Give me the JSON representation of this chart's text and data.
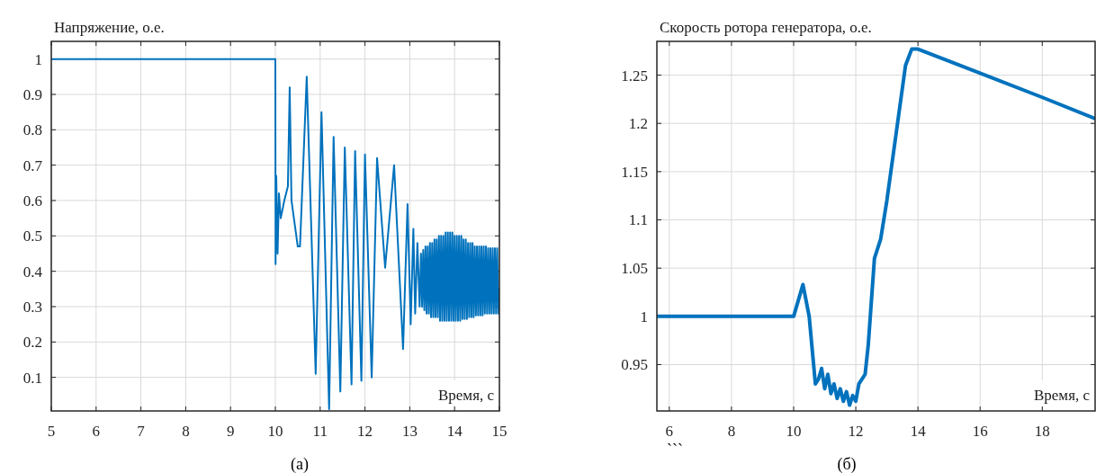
{
  "chart_data": [
    {
      "type": "line",
      "ylabel": "Напряжение, о.е.",
      "xlabel": "Время, с",
      "xlim": [
        5,
        15
      ],
      "ylim": [
        0.005,
        1.05
      ],
      "xticks": [
        5,
        6,
        7,
        8,
        9,
        10,
        11,
        12,
        13,
        14,
        15
      ],
      "yticks": [
        0.1,
        0.2,
        0.3,
        0.4,
        0.5,
        0.6,
        0.7,
        0.8,
        0.9,
        1
      ],
      "grid": true,
      "line_style": "solid",
      "annotations": [
        "(а)"
      ],
      "series": [
        {
          "color": "#0072bd",
          "x": [
            5,
            10,
            10.005,
            10.02,
            10.05,
            10.08,
            10.12,
            10.2,
            10.28,
            10.32,
            10.36,
            10.5,
            10.55,
            10.7,
            10.9,
            11.03,
            11.2,
            11.3,
            11.45,
            11.55,
            11.7,
            11.78,
            11.92,
            12.0,
            12.15,
            12.27,
            12.45,
            12.65,
            12.85,
            12.95,
            13.02,
            13.08,
            13.12,
            13.17,
            13.22,
            13.25,
            13.275,
            13.3,
            13.325,
            13.35,
            13.375,
            13.4,
            13.425,
            13.45,
            13.475,
            13.5,
            13.525,
            13.55,
            13.575,
            13.6,
            13.625,
            13.65,
            13.675,
            13.7,
            13.725,
            13.75,
            13.775,
            13.8,
            13.825,
            13.85,
            13.875,
            13.9,
            13.925,
            13.95,
            13.975,
            14.0,
            14.025,
            14.05,
            14.075,
            14.1,
            14.125,
            14.15,
            14.175,
            14.2,
            14.225,
            14.25,
            14.275,
            14.3,
            14.325,
            14.35,
            14.375,
            14.4,
            14.425,
            14.45,
            14.475,
            14.5,
            14.525,
            14.55,
            14.575,
            14.6,
            14.625,
            14.65,
            14.675,
            14.7,
            14.725,
            14.75,
            14.775,
            14.8,
            14.825,
            14.85,
            14.875,
            14.9,
            14.925,
            14.95,
            14.975,
            15.0
          ],
          "values": [
            1,
            1,
            0.42,
            0.67,
            0.45,
            0.62,
            0.55,
            0.6,
            0.64,
            0.92,
            0.6,
            0.47,
            0.47,
            0.95,
            0.11,
            0.85,
            0.01,
            0.78,
            0.06,
            0.75,
            0.08,
            0.74,
            0.09,
            0.73,
            0.1,
            0.72,
            0.41,
            0.7,
            0.18,
            0.59,
            0.25,
            0.52,
            0.28,
            0.48,
            0.3,
            0.45,
            0.3,
            0.46,
            0.29,
            0.47,
            0.28,
            0.47,
            0.28,
            0.48,
            0.27,
            0.48,
            0.27,
            0.49,
            0.27,
            0.49,
            0.27,
            0.5,
            0.26,
            0.5,
            0.26,
            0.5,
            0.26,
            0.51,
            0.26,
            0.51,
            0.26,
            0.51,
            0.26,
            0.51,
            0.26,
            0.5,
            0.26,
            0.5,
            0.26,
            0.5,
            0.26,
            0.5,
            0.265,
            0.49,
            0.265,
            0.49,
            0.265,
            0.48,
            0.27,
            0.48,
            0.27,
            0.48,
            0.27,
            0.47,
            0.275,
            0.47,
            0.275,
            0.47,
            0.275,
            0.47,
            0.275,
            0.47,
            0.28,
            0.47,
            0.28,
            0.465,
            0.28,
            0.465,
            0.28,
            0.465,
            0.28,
            0.465,
            0.28,
            0.465,
            0.28,
            0.35
          ]
        }
      ]
    },
    {
      "type": "line",
      "ylabel": "Скорость ротора генератора, о.е.",
      "xlabel": "Время, с",
      "xlim": [
        5.6,
        19.7
      ],
      "ylim": [
        0.902,
        1.285
      ],
      "xticks": [
        6,
        8,
        10,
        12,
        14,
        16,
        18
      ],
      "yticks": [
        0.95,
        1,
        1.05,
        1.1,
        1.15,
        1.2,
        1.25
      ],
      "grid": true,
      "line_style": "solid",
      "annotations": [
        "```",
        "(б)"
      ],
      "series": [
        {
          "color": "#0072bd",
          "x": [
            5.6,
            10.0,
            10.3,
            10.5,
            10.7,
            10.8,
            10.9,
            11.0,
            11.1,
            11.2,
            11.3,
            11.4,
            11.5,
            11.6,
            11.7,
            11.8,
            11.9,
            12.0,
            12.1,
            12.3,
            12.4,
            12.6,
            12.8,
            13.0,
            13.3,
            13.6,
            13.8,
            14.0,
            16.0,
            18.0,
            19.7
          ],
          "values": [
            1,
            1,
            1.033,
            1.0,
            0.93,
            0.935,
            0.946,
            0.925,
            0.94,
            0.92,
            0.93,
            0.915,
            0.925,
            0.912,
            0.922,
            0.908,
            0.918,
            0.912,
            0.93,
            0.94,
            0.97,
            1.06,
            1.08,
            1.12,
            1.19,
            1.26,
            1.277,
            1.277,
            1.252,
            1.227,
            1.205
          ]
        }
      ]
    }
  ]
}
